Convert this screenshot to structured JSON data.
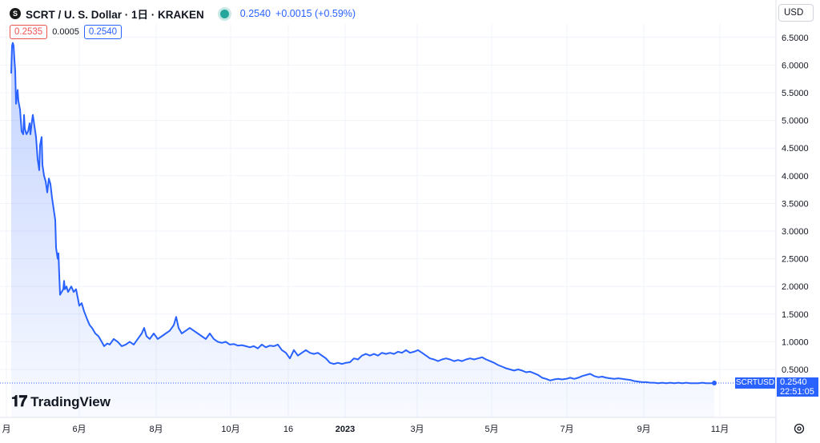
{
  "header": {
    "logo_letter": "S",
    "title": "SCRT / U. S. Dollar · 1日 · KRAKEN",
    "last_price": "0.2540",
    "change": "+0.0015 (+0.59%)"
  },
  "quote": {
    "bid": "0.2535",
    "spread": "0.0005",
    "ask": "0.2540"
  },
  "currency_label": "USD",
  "branding": {
    "mark": "𝟏𝟕",
    "name": "TradingView"
  },
  "price_tag": {
    "symbol": "SCRTUSD",
    "price": "0.2540",
    "countdown": "22:51:05"
  },
  "colors": {
    "line": "#2962ff",
    "axis_text": "#131722",
    "grid": "#f0f3fa"
  },
  "icons": {
    "settings": "settings-gear-icon"
  },
  "chart_data": {
    "type": "area",
    "title": "SCRT / U. S. Dollar · 1日 · KRAKEN",
    "xlabel": "",
    "ylabel": "",
    "x_ticks": [
      "月",
      "6月",
      "8月",
      "10月",
      "16",
      "2023",
      "3月",
      "5月",
      "7月",
      "9月",
      "11月"
    ],
    "y_ticks": [
      "0.5000",
      "1.0000",
      "1.5000",
      "2.0000",
      "2.5000",
      "3.0000",
      "3.5000",
      "4.0000",
      "4.5000",
      "5.0000",
      "5.5000",
      "6.0000",
      "6.5000"
    ],
    "ylim": [
      -0.6,
      7.0
    ],
    "x_index_range": [
      0,
      890
    ],
    "series": [
      {
        "name": "SCRTUSD",
        "points": [
          [
            7,
            5.85
          ],
          [
            8,
            6.35
          ],
          [
            9,
            6.4
          ],
          [
            10,
            6.35
          ],
          [
            11,
            6.1
          ],
          [
            12,
            5.9
          ],
          [
            13,
            5.3
          ],
          [
            15,
            5.55
          ],
          [
            16,
            5.35
          ],
          [
            18,
            5.2
          ],
          [
            20,
            4.8
          ],
          [
            22,
            4.75
          ],
          [
            23,
            5.1
          ],
          [
            24,
            4.85
          ],
          [
            26,
            4.75
          ],
          [
            28,
            4.8
          ],
          [
            30,
            4.95
          ],
          [
            31,
            4.75
          ],
          [
            33,
            5.0
          ],
          [
            34,
            5.1
          ],
          [
            36,
            4.9
          ],
          [
            38,
            4.7
          ],
          [
            40,
            4.3
          ],
          [
            42,
            4.1
          ],
          [
            43,
            4.55
          ],
          [
            45,
            4.7
          ],
          [
            46,
            4.2
          ],
          [
            48,
            4.0
          ],
          [
            50,
            3.9
          ],
          [
            52,
            3.7
          ],
          [
            54,
            3.95
          ],
          [
            56,
            3.85
          ],
          [
            58,
            3.6
          ],
          [
            60,
            3.4
          ],
          [
            62,
            3.2
          ],
          [
            63,
            2.7
          ],
          [
            64,
            2.6
          ],
          [
            65,
            2.5
          ],
          [
            66,
            2.6
          ],
          [
            67,
            2.2
          ],
          [
            68,
            1.85
          ],
          [
            70,
            1.9
          ],
          [
            72,
            1.95
          ],
          [
            73,
            2.1
          ],
          [
            74,
            1.95
          ],
          [
            76,
            2.0
          ],
          [
            78,
            1.9
          ],
          [
            80,
            1.95
          ],
          [
            82,
            2.0
          ],
          [
            85,
            1.9
          ],
          [
            88,
            1.95
          ],
          [
            90,
            1.8
          ],
          [
            92,
            1.65
          ],
          [
            95,
            1.7
          ],
          [
            98,
            1.55
          ],
          [
            102,
            1.4
          ],
          [
            105,
            1.3
          ],
          [
            108,
            1.25
          ],
          [
            112,
            1.15
          ],
          [
            116,
            1.1
          ],
          [
            120,
            1.0
          ],
          [
            123,
            0.92
          ],
          [
            127,
            0.97
          ],
          [
            130,
            0.95
          ],
          [
            135,
            1.05
          ],
          [
            140,
            1.0
          ],
          [
            145,
            0.92
          ],
          [
            150,
            0.95
          ],
          [
            155,
            1.0
          ],
          [
            160,
            0.95
          ],
          [
            165,
            1.05
          ],
          [
            170,
            1.15
          ],
          [
            173,
            1.25
          ],
          [
            176,
            1.1
          ],
          [
            180,
            1.05
          ],
          [
            185,
            1.15
          ],
          [
            190,
            1.05
          ],
          [
            195,
            1.1
          ],
          [
            200,
            1.15
          ],
          [
            205,
            1.2
          ],
          [
            210,
            1.3
          ],
          [
            213,
            1.45
          ],
          [
            216,
            1.25
          ],
          [
            220,
            1.15
          ],
          [
            225,
            1.2
          ],
          [
            230,
            1.25
          ],
          [
            235,
            1.2
          ],
          [
            240,
            1.15
          ],
          [
            245,
            1.1
          ],
          [
            250,
            1.05
          ],
          [
            255,
            1.15
          ],
          [
            260,
            1.05
          ],
          [
            265,
            1.0
          ],
          [
            270,
            0.98
          ],
          [
            275,
            1.0
          ],
          [
            280,
            0.95
          ],
          [
            285,
            0.96
          ],
          [
            290,
            0.93
          ],
          [
            295,
            0.94
          ],
          [
            300,
            0.92
          ],
          [
            305,
            0.9
          ],
          [
            310,
            0.92
          ],
          [
            315,
            0.88
          ],
          [
            320,
            0.95
          ],
          [
            325,
            0.9
          ],
          [
            330,
            0.93
          ],
          [
            335,
            0.92
          ],
          [
            340,
            0.95
          ],
          [
            345,
            0.85
          ],
          [
            350,
            0.8
          ],
          [
            355,
            0.7
          ],
          [
            360,
            0.85
          ],
          [
            365,
            0.75
          ],
          [
            370,
            0.8
          ],
          [
            375,
            0.85
          ],
          [
            380,
            0.8
          ],
          [
            385,
            0.78
          ],
          [
            390,
            0.8
          ],
          [
            395,
            0.75
          ],
          [
            400,
            0.7
          ],
          [
            405,
            0.62
          ],
          [
            410,
            0.6
          ],
          [
            415,
            0.62
          ],
          [
            420,
            0.6
          ],
          [
            425,
            0.62
          ],
          [
            430,
            0.63
          ],
          [
            435,
            0.7
          ],
          [
            440,
            0.68
          ],
          [
            445,
            0.75
          ],
          [
            450,
            0.78
          ],
          [
            455,
            0.75
          ],
          [
            460,
            0.78
          ],
          [
            465,
            0.75
          ],
          [
            470,
            0.8
          ],
          [
            475,
            0.78
          ],
          [
            480,
            0.8
          ],
          [
            485,
            0.78
          ],
          [
            490,
            0.82
          ],
          [
            495,
            0.8
          ],
          [
            500,
            0.85
          ],
          [
            505,
            0.8
          ],
          [
            510,
            0.82
          ],
          [
            515,
            0.85
          ],
          [
            520,
            0.8
          ],
          [
            525,
            0.75
          ],
          [
            530,
            0.7
          ],
          [
            535,
            0.68
          ],
          [
            540,
            0.65
          ],
          [
            545,
            0.68
          ],
          [
            550,
            0.7
          ],
          [
            555,
            0.68
          ],
          [
            560,
            0.65
          ],
          [
            565,
            0.67
          ],
          [
            570,
            0.65
          ],
          [
            575,
            0.68
          ],
          [
            580,
            0.7
          ],
          [
            585,
            0.68
          ],
          [
            590,
            0.7
          ],
          [
            595,
            0.72
          ],
          [
            600,
            0.68
          ],
          [
            605,
            0.65
          ],
          [
            610,
            0.62
          ],
          [
            615,
            0.58
          ],
          [
            620,
            0.55
          ],
          [
            625,
            0.52
          ],
          [
            630,
            0.5
          ],
          [
            635,
            0.48
          ],
          [
            640,
            0.5
          ],
          [
            645,
            0.48
          ],
          [
            650,
            0.45
          ],
          [
            655,
            0.46
          ],
          [
            660,
            0.43
          ],
          [
            665,
            0.4
          ],
          [
            670,
            0.35
          ],
          [
            675,
            0.33
          ],
          [
            680,
            0.3
          ],
          [
            685,
            0.32
          ],
          [
            690,
            0.33
          ],
          [
            695,
            0.32
          ],
          [
            700,
            0.33
          ],
          [
            705,
            0.35
          ],
          [
            710,
            0.33
          ],
          [
            715,
            0.35
          ],
          [
            720,
            0.38
          ],
          [
            725,
            0.4
          ],
          [
            730,
            0.42
          ],
          [
            735,
            0.38
          ],
          [
            740,
            0.36
          ],
          [
            745,
            0.37
          ],
          [
            750,
            0.35
          ],
          [
            755,
            0.34
          ],
          [
            760,
            0.33
          ],
          [
            765,
            0.34
          ],
          [
            770,
            0.33
          ],
          [
            775,
            0.32
          ],
          [
            780,
            0.31
          ],
          [
            785,
            0.29
          ],
          [
            790,
            0.28
          ],
          [
            795,
            0.27
          ],
          [
            800,
            0.27
          ],
          [
            805,
            0.26
          ],
          [
            810,
            0.26
          ],
          [
            815,
            0.25
          ],
          [
            820,
            0.26
          ],
          [
            825,
            0.25
          ],
          [
            830,
            0.26
          ],
          [
            835,
            0.25
          ],
          [
            840,
            0.26
          ],
          [
            845,
            0.25
          ],
          [
            850,
            0.26
          ],
          [
            855,
            0.25
          ],
          [
            860,
            0.25
          ],
          [
            865,
            0.25
          ],
          [
            870,
            0.26
          ],
          [
            875,
            0.25
          ],
          [
            880,
            0.25
          ],
          [
            885,
            0.254
          ]
        ]
      }
    ],
    "last_value": 0.254,
    "grid": true,
    "legend": "none"
  }
}
